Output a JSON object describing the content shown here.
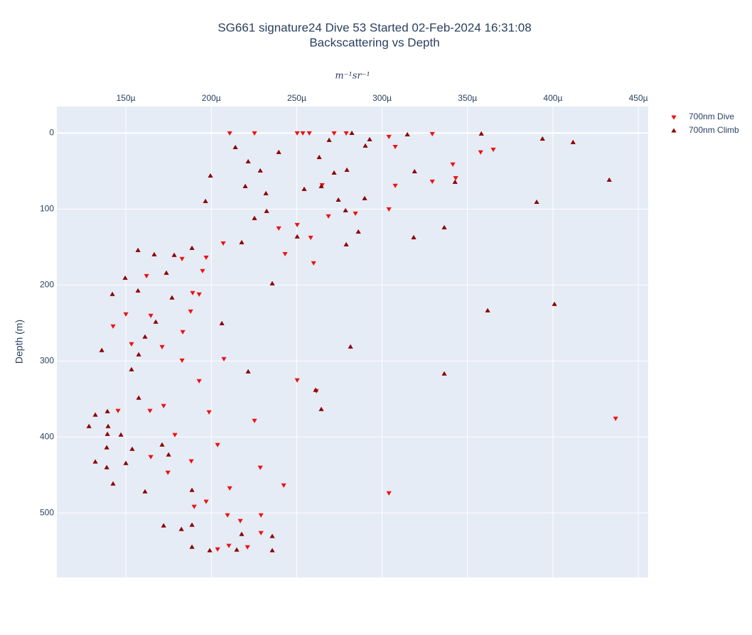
{
  "chart_data": {
    "type": "scatter",
    "title": "SG661 signature24 Dive 53 Started 02-Feb-2024 16:31:08",
    "subtitle": "Backscattering vs Depth",
    "x_label": "m⁻¹sr⁻¹",
    "y_label": "Depth (m)",
    "x_axis_position": "top",
    "y_reversed": true,
    "grid": true,
    "legend": "right",
    "xlim": [
      0.0001096,
      0.0004558
    ],
    "ylim": [
      -35,
      585
    ],
    "xticks": [
      {
        "value": 0.00015,
        "label": "150µ"
      },
      {
        "value": 0.0002,
        "label": "200µ"
      },
      {
        "value": 0.00025,
        "label": "250µ"
      },
      {
        "value": 0.0003,
        "label": "300µ"
      },
      {
        "value": 0.00035,
        "label": "350µ"
      },
      {
        "value": 0.0004,
        "label": "400µ"
      },
      {
        "value": 0.00045,
        "label": "450µ"
      }
    ],
    "yticks": [
      0,
      100,
      200,
      300,
      400,
      500
    ],
    "series": [
      {
        "name": "700nm Dive",
        "color": "#ee1111",
        "marker": "triangle-down",
        "x": [
          0.0002108,
          0.0002253,
          0.0002503,
          0.0002536,
          0.0002574,
          0.0002719,
          0.000279,
          0.000304,
          0.0003077,
          0.0003294,
          0.0003414,
          0.0003577,
          0.0003651,
          0.0003431,
          0.0003294,
          0.0003077,
          0.000304,
          0.0002844,
          0.0002582,
          0.0002503,
          0.0002432,
          0.0002395,
          0.000207,
          0.000197,
          0.0001949,
          0.0001829,
          0.0001929,
          0.0001879,
          0.0001833,
          0.0001712,
          0.0001621,
          0.00015,
          0.0001425,
          0.0001646,
          0.0001829,
          0.0001929,
          0.0002074,
          0.0001987,
          0.0002253,
          0.0001641,
          0.0001646,
          0.0001746,
          0.0001883,
          0.0002108,
          0.0002287,
          0.0002424,
          0.0002037,
          0.0001787,
          0.0001454,
          0.000197,
          0.0002095,
          0.0002212,
          0.0002103,
          0.0002037,
          0.0002291,
          0.0002291,
          0.0002503,
          0.0002615,
          0.0004367,
          0.000304,
          0.0002649,
          0.0002686,
          0.0002599,
          0.0001891,
          0.0001533,
          0.0001721,
          0.00019,
          0.000217
        ],
        "values": [
          0,
          0,
          0,
          0,
          0,
          0,
          0,
          4.7,
          17.8,
          0.9,
          41,
          25,
          21.5,
          59,
          63.6,
          69,
          100,
          105.6,
          137.4,
          120.6,
          158.9,
          125.2,
          144.9,
          163.6,
          181.3,
          165.4,
          212.1,
          234.6,
          261.7,
          281.3,
          187.9,
          238.3,
          254.2,
          240.2,
          299.1,
          326.2,
          297.2,
          367.3,
          378.5,
          365.4,
          426.2,
          446.7,
          431.8,
          467.3,
          440.2,
          463.6,
          410.3,
          397.2,
          365.4,
          485,
          502.8,
          544.9,
          543,
          547.7,
          502.8,
          526.2,
          325.2,
          339.3,
          375.7,
          473.8,
          68.2,
          109.3,
          171,
          210.3,
          277.6,
          358.9,
          491.6,
          510.3
        ]
      },
      {
        "name": "700nm Climb",
        "color": "#8b0000",
        "marker": "triangle-up",
        "x": [
          0.0002823,
          0.0003148,
          0.0003581,
          0.0003939,
          0.0004118,
          0.000433,
          0.0003905,
          0.0004009,
          0.0003618,
          0.0003364,
          0.0003364,
          0.0003185,
          0.000319,
          0.0003427,
          0.0002927,
          0.0002902,
          0.000269,
          0.0002632,
          0.0002794,
          0.0002719,
          0.0002644,
          0.0002744,
          0.0002898,
          0.0002786,
          0.0002861,
          0.000279,
          0.0002815,
          0.0002611,
          0.0002644,
          0.0002503,
          0.0002544,
          0.0002395,
          0.0002141,
          0.0002216,
          0.0002287,
          0.0002199,
          0.0002324,
          0.000232,
          0.0002253,
          0.0002178,
          0.0002357,
          0.0001995,
          0.0001966,
          0.0001571,
          0.0001666,
          0.0001783,
          0.0001887,
          0.0001496,
          0.0001571,
          0.0001675,
          0.000177,
          0.0001612,
          0.0001575,
          0.0001359,
          0.0001421,
          0.0001533,
          0.0001575,
          0.0001392,
          0.0001321,
          0.0001284,
          0.0001396,
          0.0001392,
          0.0001471,
          0.0001537,
          0.0001388,
          0.0001388,
          0.0001425,
          0.00015,
          0.0001612,
          0.0001721,
          0.0001825,
          0.0001887,
          0.0001887,
          0.0001991,
          0.0002149,
          0.0002178,
          0.0002357,
          0.0002357,
          0.0001712,
          0.000175,
          0.0001887,
          0.0001737,
          0.0002062,
          0.0002216,
          0.0001321
        ],
        "values": [
          0,
          1.9,
          0.9,
          7.5,
          12.1,
          61.7,
          90.7,
          225.2,
          233.6,
          124.3,
          316.8,
          137.4,
          50.5,
          64.5,
          8.4,
          16.8,
          9.3,
          31.8,
          48.6,
          52.3,
          70.1,
          87.9,
          86,
          101.9,
          129.9,
          146.7,
          281.3,
          338.3,
          363.6,
          136.4,
          73.8,
          25.2,
          18.7,
          37.4,
          49.5,
          70.1,
          102.8,
          79.4,
          112.1,
          143.9,
          198.1,
          56.1,
          89.7,
          154.2,
          159.8,
          160.7,
          151.4,
          190.7,
          207.5,
          248.6,
          216.8,
          268.2,
          291.6,
          286,
          212.1,
          311.2,
          348.6,
          366.4,
          371,
          386,
          386,
          396.3,
          397.2,
          415.9,
          414,
          440.2,
          461.7,
          434.6,
          472,
          516.8,
          521.5,
          515.9,
          544.9,
          549.5,
          548.6,
          528,
          530.8,
          549.5,
          410.3,
          423.4,
          470.1,
          184.1,
          250.5,
          314,
          432.7
        ]
      }
    ]
  }
}
